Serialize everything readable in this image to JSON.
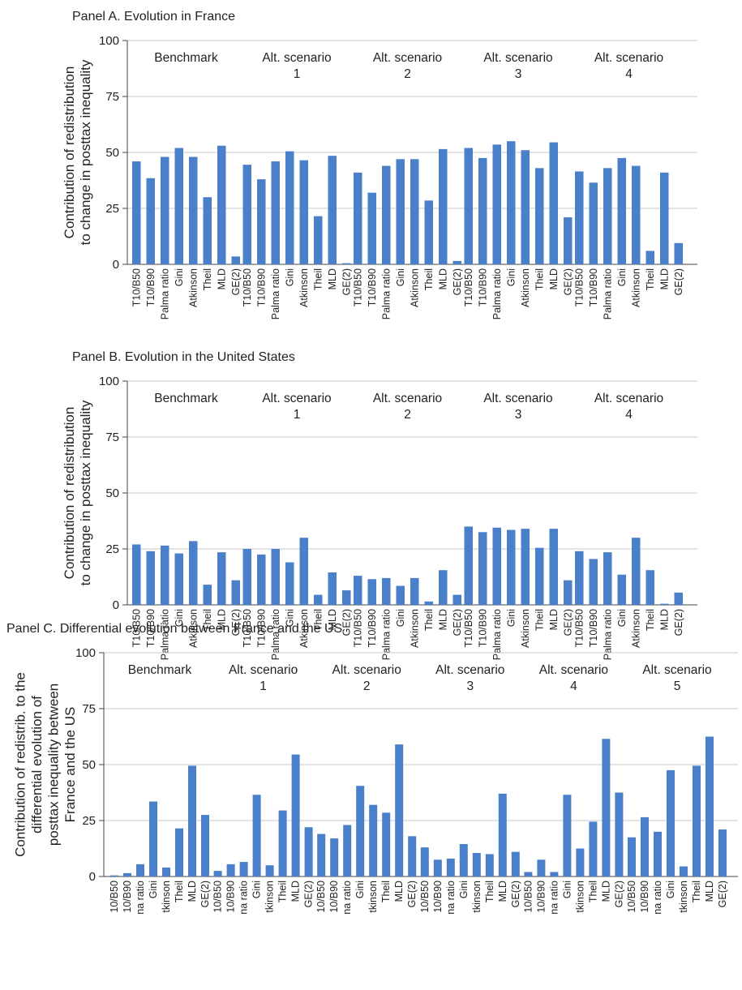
{
  "chart_data": [
    {
      "type": "bar",
      "title": "Panel A. Evolution in France",
      "ylabel": [
        "Contribution of redistribution",
        "to change in posttax inequality"
      ],
      "ylim": [
        0,
        100
      ],
      "yticks": [
        0,
        25,
        50,
        75,
        100
      ],
      "grid": true,
      "categories": [
        "T10/B50",
        "T10/B90",
        "Palma ratio",
        "Gini",
        "Atkinson",
        "Theil",
        "MLD",
        "GE(2)"
      ],
      "groups": [
        {
          "label": [
            "Benchmark"
          ],
          "values": [
            46,
            38.5,
            48,
            52,
            48,
            30,
            53,
            3.5
          ]
        },
        {
          "label": [
            "Alt. scenario",
            "1"
          ],
          "values": [
            44.5,
            38,
            46,
            50.5,
            46.5,
            21.5,
            48.5,
            0.5
          ]
        },
        {
          "label": [
            "Alt. scenario",
            "2"
          ],
          "values": [
            41,
            32,
            44,
            47,
            47,
            28.5,
            51.5,
            1.5
          ]
        },
        {
          "label": [
            "Alt. scenario",
            "3"
          ],
          "values": [
            52,
            47.5,
            53.5,
            55,
            51,
            43,
            54.5,
            21
          ]
        },
        {
          "label": [
            "Alt. scenario",
            "4"
          ],
          "values": [
            41.5,
            36.5,
            43,
            47.5,
            44,
            6,
            41,
            9.5
          ]
        }
      ]
    },
    {
      "type": "bar",
      "title": "Panel B. Evolution in the United States",
      "ylabel": [
        "Contribution of redistribution",
        "to change in posttax inequality"
      ],
      "ylim": [
        0,
        100
      ],
      "yticks": [
        0,
        25,
        50,
        75,
        100
      ],
      "grid": true,
      "categories": [
        "T10/B50",
        "T10/B90",
        "Palma ratio",
        "Gini",
        "Atkinson",
        "Theil",
        "MLD",
        "GE(2)"
      ],
      "groups": [
        {
          "label": [
            "Benchmark"
          ],
          "values": [
            27,
            24,
            26.5,
            23,
            28.5,
            9,
            23.5,
            11
          ]
        },
        {
          "label": [
            "Alt. scenario",
            "1"
          ],
          "values": [
            25,
            22.5,
            25,
            19,
            30,
            4.5,
            14.5,
            6.5
          ]
        },
        {
          "label": [
            "Alt. scenario",
            "2"
          ],
          "values": [
            13,
            11.5,
            12,
            8.5,
            12,
            1.5,
            15.5,
            4.5
          ]
        },
        {
          "label": [
            "Alt. scenario",
            "3"
          ],
          "values": [
            35,
            32.5,
            34.5,
            33.5,
            34,
            25.5,
            34,
            11
          ]
        },
        {
          "label": [
            "Alt. scenario",
            "4"
          ],
          "values": [
            24,
            20.5,
            23.5,
            13.5,
            30,
            15.5,
            0.5,
            5.5
          ]
        }
      ]
    },
    {
      "type": "bar",
      "title": "Panel C. Differential evolution between France and the US",
      "ylabel": [
        "Contribution of redistrib. to the",
        "differential evolution of",
        "posttax inequality between",
        "France and the US"
      ],
      "ylim": [
        0,
        100
      ],
      "yticks": [
        0,
        25,
        50,
        75,
        100
      ],
      "grid": true,
      "categories": [
        "10/B50",
        "10/B90",
        "na ratio",
        "Gini",
        "tkinson",
        "Theil",
        "MLD",
        "GE(2)"
      ],
      "groups": [
        {
          "label": [
            "Benchmark"
          ],
          "values": [
            0.5,
            1.5,
            5.5,
            33.5,
            4,
            21.5,
            49.5,
            27.5
          ]
        },
        {
          "label": [
            "Alt. scenario",
            "1"
          ],
          "values": [
            2.5,
            5.5,
            6.5,
            36.5,
            5,
            29.5,
            54.5,
            22
          ]
        },
        {
          "label": [
            "Alt. scenario",
            "2"
          ],
          "values": [
            19,
            17,
            23,
            40.5,
            32,
            28.5,
            59,
            18
          ]
        },
        {
          "label": [
            "Alt. scenario",
            "3"
          ],
          "values": [
            13,
            7.5,
            8,
            14.5,
            10.5,
            10,
            37,
            11
          ]
        },
        {
          "label": [
            "Alt. scenario",
            "4"
          ],
          "values": [
            2,
            7.5,
            2,
            36.5,
            12.5,
            24.5,
            61.5,
            37.5
          ]
        },
        {
          "label": [
            "Alt. scenario",
            "5"
          ],
          "values": [
            17.5,
            26.5,
            20,
            47.5,
            4.5,
            49.5,
            62.5,
            21
          ]
        }
      ]
    }
  ],
  "colors": {
    "bar": "#4a7fca",
    "grid": "#c9c9c9",
    "axis": "#444444",
    "text": "#222222"
  }
}
